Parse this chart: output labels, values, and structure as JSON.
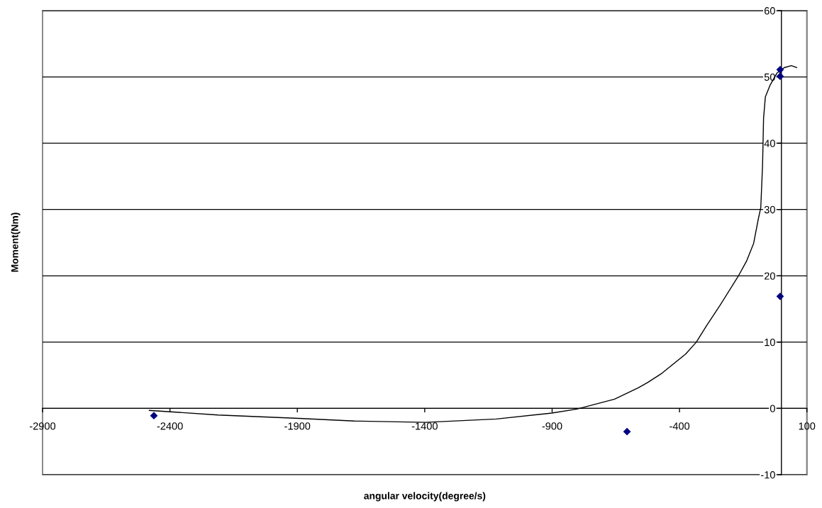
{
  "chart_data": {
    "type": "scatter",
    "xlabel": "angular velocity(degree/s)",
    "ylabel": "Moment(Nm)",
    "xlim": [
      -2900,
      100
    ],
    "xticks": [
      -2900,
      -2400,
      -1900,
      -1400,
      -900,
      -400,
      100
    ],
    "ylim": [
      -10,
      60
    ],
    "yticks": [
      -10,
      0,
      10,
      20,
      30,
      40,
      50,
      60
    ],
    "grid": "y",
    "series": [
      {
        "type": "scatter",
        "color": "#000080",
        "marker": "diamond",
        "x": [
          -2463,
          -606,
          -5,
          -5,
          -5
        ],
        "values": [
          -1.1,
          -3.5,
          51.1,
          50.1,
          16.9
        ]
      },
      {
        "type": "line",
        "color": "#000000",
        "marker": "none",
        "line_style": "solid",
        "x": [
          -2481,
          -2211,
          -1894,
          -1676,
          -1397,
          -1119,
          -901,
          -803,
          -655,
          -562,
          -525,
          -469,
          -376,
          -334,
          -295,
          -240,
          -170,
          -137,
          -109,
          -91,
          -81,
          -74,
          -70,
          -63,
          -44,
          -17,
          11,
          39,
          60
        ],
        "values": [
          -0.3,
          -1.0,
          -1.5,
          -1.9,
          -2.1,
          -1.6,
          -0.7,
          -0.1,
          1.4,
          3.1,
          3.9,
          5.3,
          8.2,
          10.0,
          12.4,
          15.6,
          19.9,
          22.2,
          24.9,
          28.5,
          30.3,
          36.7,
          43.8,
          47.0,
          48.8,
          50.6,
          51.4,
          51.7,
          51.4
        ]
      }
    ]
  }
}
